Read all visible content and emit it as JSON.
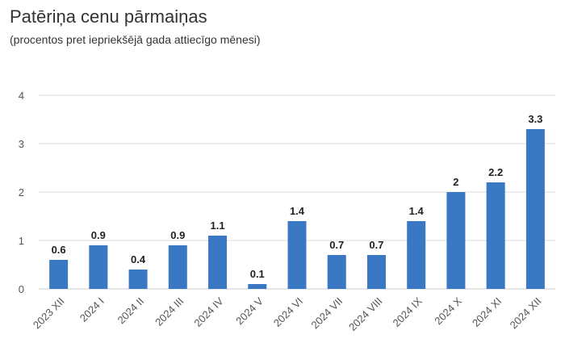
{
  "header": {
    "title": "Patēriņa cenu pārmaiņas",
    "subtitle": "(procentos pret iepriekšējā gada attiecīgo mēnesi)"
  },
  "chart_data": {
    "type": "bar",
    "title": "Patēriņa cenu pārmaiņas",
    "subtitle": "(procentos pret iepriekšējā gada attiecīgo mēnesi)",
    "xlabel": "",
    "ylabel": "",
    "ylim": [
      0,
      4
    ],
    "yticks": [
      0,
      1,
      2,
      3,
      4
    ],
    "grid": true,
    "legend": "none",
    "bar_color": "#3a78c4",
    "categories": [
      "2023 XII",
      "2024 I",
      "2024 II",
      "2024 III",
      "2024 IV",
      "2024 V",
      "2024 VI",
      "2024 VII",
      "2024 VIII",
      "2024 IX",
      "2024 X",
      "2024 XI",
      "2024 XII"
    ],
    "values": [
      0.6,
      0.9,
      0.4,
      0.9,
      1.1,
      0.1,
      1.4,
      0.7,
      0.7,
      1.4,
      2,
      2.2,
      3.3
    ],
    "data_labels": [
      "0.6",
      "0.9",
      "0.4",
      "0.9",
      "1.1",
      "0.1",
      "1.4",
      "0.7",
      "0.7",
      "1.4",
      "2",
      "2.2",
      "3.3"
    ]
  }
}
